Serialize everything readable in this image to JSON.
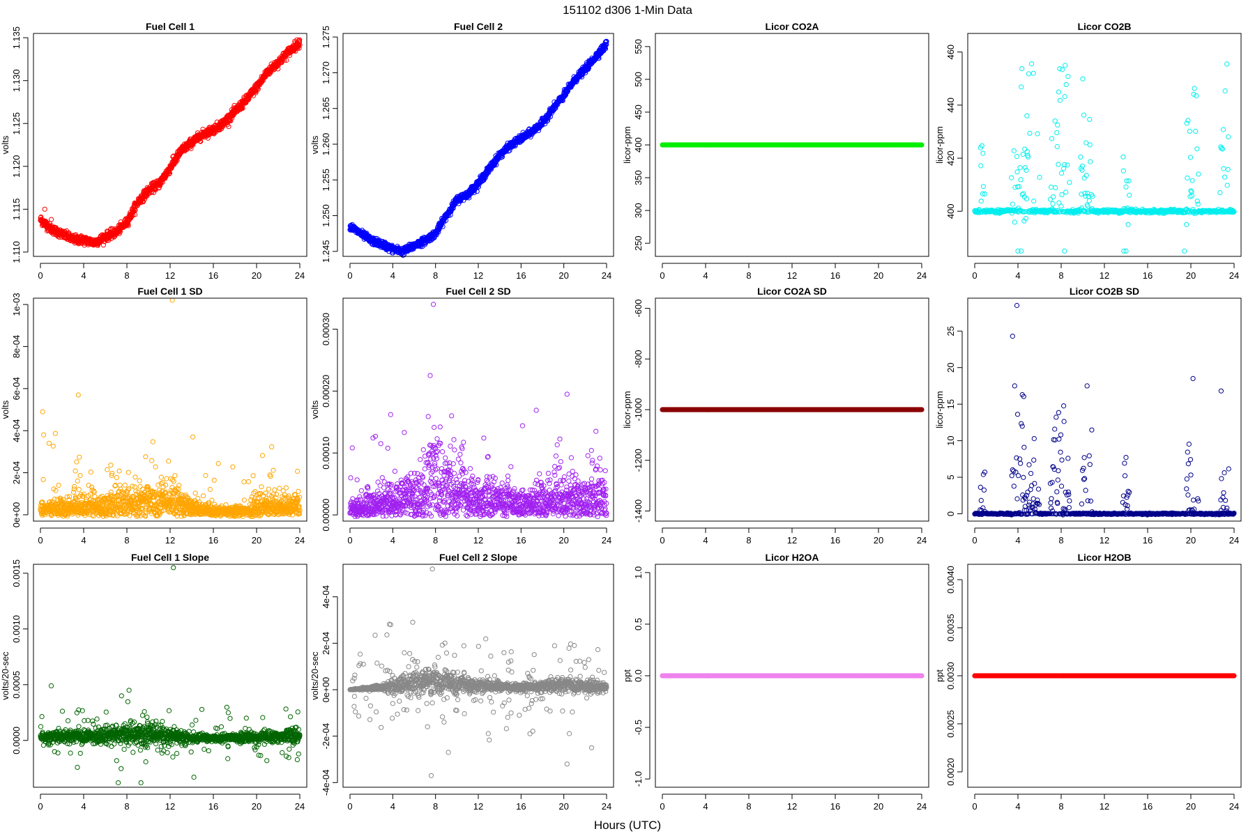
{
  "figure": {
    "title": "151102   d306   1-Min Data",
    "xlabel": "Hours (UTC)"
  },
  "chart_data": [
    {
      "id": "fc1",
      "type": "scatter",
      "title": "Fuel Cell 1",
      "ylabel": "volts",
      "color": "#ff0000",
      "xlim": [
        0,
        24
      ],
      "ylim": [
        1.1095,
        1.1355
      ],
      "xticks": [
        0,
        4,
        8,
        12,
        16,
        20,
        24
      ],
      "yticks": [
        1.11,
        1.115,
        1.12,
        1.125,
        1.13,
        1.135
      ],
      "ytick_labels": [
        "1.110",
        "1.115",
        "1.120",
        "1.125",
        "1.130",
        "1.135"
      ],
      "series": [
        {
          "name": "Fuel Cell 1",
          "profile": [
            [
              0,
              1.1138
            ],
            [
              1,
              1.1127
            ],
            [
              2,
              1.1121
            ],
            [
              3,
              1.1115
            ],
            [
              4,
              1.1114
            ],
            [
              5,
              1.1111
            ],
            [
              6,
              1.1118
            ],
            [
              7,
              1.1123
            ],
            [
              8,
              1.1135
            ],
            [
              9,
              1.1158
            ],
            [
              10,
              1.1172
            ],
            [
              11,
              1.118
            ],
            [
              12,
              1.1198
            ],
            [
              13,
              1.1218
            ],
            [
              14,
              1.1228
            ],
            [
              15,
              1.1237
            ],
            [
              16,
              1.1243
            ],
            [
              17,
              1.1251
            ],
            [
              18,
              1.1264
            ],
            [
              19,
              1.1277
            ],
            [
              20,
              1.1292
            ],
            [
              21,
              1.131
            ],
            [
              22,
              1.1321
            ],
            [
              23,
              1.1334
            ],
            [
              24,
              1.1345
            ]
          ],
          "noise": 0.00025,
          "outliers": [
            [
              0.4,
              1.115
            ],
            [
              1.0,
              1.1138
            ],
            [
              12.3,
              1.1212
            ],
            [
              12.5,
              1.1208
            ]
          ]
        }
      ]
    },
    {
      "id": "fc2",
      "type": "scatter",
      "title": "Fuel Cell 2",
      "ylabel": "volts",
      "color": "#0000ff",
      "xlim": [
        0,
        24
      ],
      "ylim": [
        1.2443,
        1.2755
      ],
      "xticks": [
        0,
        4,
        8,
        12,
        16,
        20,
        24
      ],
      "yticks": [
        1.245,
        1.25,
        1.255,
        1.26,
        1.265,
        1.27,
        1.275
      ],
      "ytick_labels": [
        "1.245",
        "1.250",
        "1.255",
        "1.260",
        "1.265",
        "1.270",
        "1.275"
      ],
      "series": [
        {
          "name": "Fuel Cell 2",
          "profile": [
            [
              0,
              1.2485
            ],
            [
              1,
              1.2475
            ],
            [
              2,
              1.2465
            ],
            [
              3,
              1.246
            ],
            [
              4,
              1.2453
            ],
            [
              5,
              1.245
            ],
            [
              6,
              1.2458
            ],
            [
              7,
              1.2465
            ],
            [
              8,
              1.2475
            ],
            [
              9,
              1.25
            ],
            [
              10,
              1.2522
            ],
            [
              11,
              1.253
            ],
            [
              12,
              1.2545
            ],
            [
              13,
              1.2565
            ],
            [
              14,
              1.2585
            ],
            [
              15,
              1.2598
            ],
            [
              16,
              1.2608
            ],
            [
              17,
              1.2617
            ],
            [
              18,
              1.263
            ],
            [
              19,
              1.265
            ],
            [
              20,
              1.2668
            ],
            [
              21,
              1.269
            ],
            [
              22,
              1.2705
            ],
            [
              23,
              1.2723
            ],
            [
              24,
              1.274
            ]
          ],
          "noise": 0.00025,
          "outliers": []
        }
      ]
    },
    {
      "id": "co2a",
      "type": "scatter",
      "title": "Licor CO2A",
      "ylabel": "licor-ppm",
      "color": "#00ee00",
      "xlim": [
        0,
        24
      ],
      "ylim": [
        230,
        570
      ],
      "xticks": [
        0,
        4,
        8,
        12,
        16,
        20,
        24
      ],
      "yticks": [
        250,
        300,
        350,
        400,
        450,
        500,
        550
      ],
      "ytick_labels": [
        "250",
        "300",
        "350",
        "400",
        "450",
        "500",
        "550"
      ],
      "series": [
        {
          "name": "Licor CO2A",
          "constant": 400
        }
      ]
    },
    {
      "id": "co2b",
      "type": "scatter",
      "title": "Licor CO2B",
      "ylabel": "licor-ppm",
      "color": "#00eeee",
      "xlim": [
        0,
        24
      ],
      "ylim": [
        383,
        467
      ],
      "xticks": [
        0,
        4,
        8,
        12,
        16,
        20,
        24
      ],
      "yticks": [
        400,
        420,
        440,
        460
      ],
      "ytick_labels": [
        "400",
        "420",
        "440",
        "460"
      ],
      "series": [
        {
          "name": "Licor CO2B",
          "base": 400,
          "clusters": [
            [
              0.5,
              1.0,
              400,
              425
            ],
            [
              3.4,
              4.6,
              395,
              465
            ],
            [
              4.6,
              6.0,
              396,
              457
            ],
            [
              7.0,
              8.8,
              399,
              460
            ],
            [
              9.8,
              10.9,
              399,
              456
            ],
            [
              13.7,
              14.3,
              398,
              418
            ],
            [
              19.6,
              20.7,
              399,
              444
            ],
            [
              22.7,
              23.5,
              400,
              452
            ]
          ],
          "low": [
            [
              4.0,
              385
            ],
            [
              4.3,
              385
            ],
            [
              8.3,
              385
            ],
            [
              13.8,
              385
            ],
            [
              14.0,
              385
            ],
            [
              19.4,
              385
            ],
            [
              19.6,
              395
            ],
            [
              14.2,
              395
            ]
          ]
        }
      ]
    },
    {
      "id": "fc1sd",
      "type": "scatter",
      "title": "Fuel Cell 1 SD",
      "ylabel": "volts",
      "color": "#ffa500",
      "xlim": [
        0,
        24
      ],
      "ylim": [
        -3e-05,
        0.00103
      ],
      "xticks": [
        0,
        4,
        8,
        12,
        16,
        20,
        24
      ],
      "yticks": [
        0,
        0.0002,
        0.0004,
        0.0006,
        0.0008,
        0.001
      ],
      "ytick_labels": [
        "0e+00",
        "2e-04",
        "4e-04",
        "6e-04",
        "8e-04",
        "1e-03"
      ],
      "series": [
        {
          "name": "Fuel Cell 1 SD",
          "profile": [
            [
              0,
              2.5e-05
            ],
            [
              4,
              4e-05
            ],
            [
              8,
              5e-05
            ],
            [
              12,
              6e-05
            ],
            [
              14,
              3e-05
            ],
            [
              16,
              1.5e-05
            ],
            [
              19,
              1.5e-05
            ],
            [
              20,
              4e-05
            ],
            [
              24,
              4e-05
            ]
          ],
          "spread": 0.00012,
          "outliers": [
            [
              12.2,
              0.00102
            ],
            [
              3.5,
              0.00057
            ],
            [
              0.2,
              0.00049
            ],
            [
              0.3,
              0.00038
            ],
            [
              14.1,
              0.00037
            ],
            [
              0.8,
              0.00034
            ]
          ]
        }
      ]
    },
    {
      "id": "fc2sd",
      "type": "scatter",
      "title": "Fuel Cell 2 SD",
      "ylabel": "volts",
      "color": "#a020f0",
      "xlim": [
        0,
        24
      ],
      "ylim": [
        -1e-05,
        0.00035
      ],
      "xticks": [
        0,
        4,
        8,
        12,
        16,
        20,
        24
      ],
      "yticks": [
        0,
        0.0001,
        0.0002,
        0.0003
      ],
      "ytick_labels": [
        "0.00000",
        "0.00010",
        "0.00020",
        "0.00030"
      ],
      "series": [
        {
          "name": "Fuel Cell 2 SD",
          "profile": [
            [
              0,
              8e-06
            ],
            [
              2,
              1.5e-05
            ],
            [
              4,
              2e-05
            ],
            [
              6,
              3e-05
            ],
            [
              8,
              5e-05
            ],
            [
              10,
              4e-05
            ],
            [
              12,
              2.2e-05
            ],
            [
              16,
              1.8e-05
            ],
            [
              20,
              2.5e-05
            ],
            [
              24,
              2.5e-05
            ]
          ],
          "spread": 5e-05,
          "outliers": [
            [
              7.8,
              0.00034
            ],
            [
              7.5,
              0.000225
            ],
            [
              20.3,
              0.000195
            ],
            [
              3.8,
              0.000162
            ],
            [
              9.5,
              0.00016
            ],
            [
              23.0,
              0.000135
            ]
          ]
        }
      ]
    },
    {
      "id": "co2asd",
      "type": "scatter",
      "title": "Licor CO2A SD",
      "ylabel": "licor-ppm",
      "color": "#8b0000",
      "xlim": [
        0,
        24
      ],
      "ylim": [
        -1440,
        -560
      ],
      "xticks": [
        0,
        4,
        8,
        12,
        16,
        20,
        24
      ],
      "yticks": [
        -1400,
        -1200,
        -1000,
        -800,
        -600
      ],
      "ytick_labels": [
        "-1400",
        "-1200",
        "-1000",
        "-800",
        "-600"
      ],
      "series": [
        {
          "name": "Licor CO2A SD",
          "constant": -1000
        }
      ]
    },
    {
      "id": "co2bsd",
      "type": "scatter",
      "title": "Licor CO2B SD",
      "ylabel": "licor-ppm",
      "color": "#00008b",
      "xlim": [
        0,
        24
      ],
      "ylim": [
        -1,
        29.5
      ],
      "xticks": [
        0,
        4,
        8,
        12,
        16,
        20,
        24
      ],
      "yticks": [
        0,
        5,
        10,
        15,
        20,
        25
      ],
      "ytick_labels": [
        "0",
        "5",
        "10",
        "15",
        "20",
        "25"
      ],
      "series": [
        {
          "name": "Licor CO2B SD",
          "base": 0,
          "clusters": [
            [
              0.5,
              1.0,
              0,
              7
            ],
            [
              3.4,
              4.6,
              0,
              17
            ],
            [
              4.6,
              6.0,
              0,
              9
            ],
            [
              7.0,
              8.8,
              0,
              14
            ],
            [
              9.8,
              10.9,
              0,
              12
            ],
            [
              13.7,
              14.3,
              0,
              10
            ],
            [
              19.6,
              20.7,
              0,
              12
            ],
            [
              22.7,
              23.5,
              0,
              8
            ]
          ],
          "low": [
            [
              3.9,
              28.5
            ],
            [
              3.5,
              24.3
            ],
            [
              20.2,
              18.5
            ],
            [
              10.4,
              17.5
            ],
            [
              3.7,
              17.5
            ],
            [
              22.8,
              16.8
            ],
            [
              4.4,
              16.3
            ]
          ]
        }
      ]
    },
    {
      "id": "fc1slope",
      "type": "scatter",
      "title": "Fuel Cell 1 Slope",
      "ylabel": "volts/20-sec",
      "color": "#006400",
      "xlim": [
        0,
        24
      ],
      "ylim": [
        -0.00042,
        0.00158
      ],
      "xticks": [
        0,
        4,
        8,
        12,
        16,
        20,
        24
      ],
      "yticks": [
        0,
        0.0005,
        0.001,
        0.0015
      ],
      "ytick_labels": [
        "0.0000",
        "0.0005",
        "0.0010",
        "0.0015"
      ],
      "series": [
        {
          "name": "Fuel Cell 1 Slope",
          "profile": [
            [
              0,
              3e-05
            ],
            [
              6,
              4e-05
            ],
            [
              10,
              6e-05
            ],
            [
              14,
              2e-05
            ],
            [
              18,
              2e-05
            ],
            [
              24,
              4e-05
            ]
          ],
          "spread": 0.00012,
          "outliers": [
            [
              12.3,
              0.00155
            ],
            [
              1.0,
              0.00049
            ],
            [
              8.2,
              0.00045
            ],
            [
              7.5,
              0.0004
            ],
            [
              14.2,
              -0.00033
            ],
            [
              9.3,
              -0.00038
            ],
            [
              7.2,
              -0.00038
            ]
          ]
        }
      ]
    },
    {
      "id": "fc2slope",
      "type": "scatter",
      "title": "Fuel Cell 2 Slope",
      "ylabel": "volts/20-sec",
      "color": "#888888",
      "xlim": [
        0,
        24
      ],
      "ylim": [
        -0.00042,
        0.00054
      ],
      "xticks": [
        0,
        4,
        8,
        12,
        16,
        20,
        24
      ],
      "yticks": [
        -0.0004,
        -0.0002,
        0,
        0.0002,
        0.0004
      ],
      "ytick_labels": [
        "-4e-04",
        "-2e-04",
        "0e+00",
        "2e-04",
        "4e-04"
      ],
      "series": [
        {
          "name": "Fuel Cell 2 Slope",
          "profile": [
            [
              0,
              0.0
            ],
            [
              3,
              1e-05
            ],
            [
              6,
              3e-05
            ],
            [
              8,
              4e-05
            ],
            [
              11,
              2e-05
            ],
            [
              16,
              1e-05
            ],
            [
              20,
              2e-05
            ],
            [
              24,
              1e-05
            ]
          ],
          "spread": 9e-05,
          "outliers": [
            [
              7.7,
              0.00052
            ],
            [
              3.8,
              0.00028
            ],
            [
              7.6,
              -0.00037
            ],
            [
              20.3,
              -0.00032
            ],
            [
              9.2,
              -0.00027
            ],
            [
              22.6,
              -0.00025
            ]
          ]
        }
      ]
    },
    {
      "id": "h2oa",
      "type": "scatter",
      "title": "Licor H2OA",
      "ylabel": "ppt",
      "color": "#ee82ee",
      "xlim": [
        0,
        24
      ],
      "ylim": [
        -1.08,
        1.08
      ],
      "xticks": [
        0,
        4,
        8,
        12,
        16,
        20,
        24
      ],
      "yticks": [
        -1.0,
        -0.5,
        0,
        0.5,
        1.0
      ],
      "ytick_labels": [
        "-1.0",
        "-0.5",
        "0.0",
        "0.5",
        "1.0"
      ],
      "series": [
        {
          "name": "Licor H2OA",
          "constant": 0
        }
      ]
    },
    {
      "id": "h2ob",
      "type": "scatter",
      "title": "Licor H2OB",
      "ylabel": "ppt",
      "color": "#ff0000",
      "xlim": [
        0,
        24
      ],
      "ylim": [
        0.00184,
        0.00416
      ],
      "xticks": [
        0,
        4,
        8,
        12,
        16,
        20,
        24
      ],
      "yticks": [
        0.002,
        0.0025,
        0.003,
        0.0035,
        0.004
      ],
      "ytick_labels": [
        "0.0020",
        "0.0025",
        "0.0030",
        "0.0035",
        "0.0040"
      ],
      "series": [
        {
          "name": "Licor H2OB",
          "constant": 0.003
        }
      ]
    }
  ]
}
